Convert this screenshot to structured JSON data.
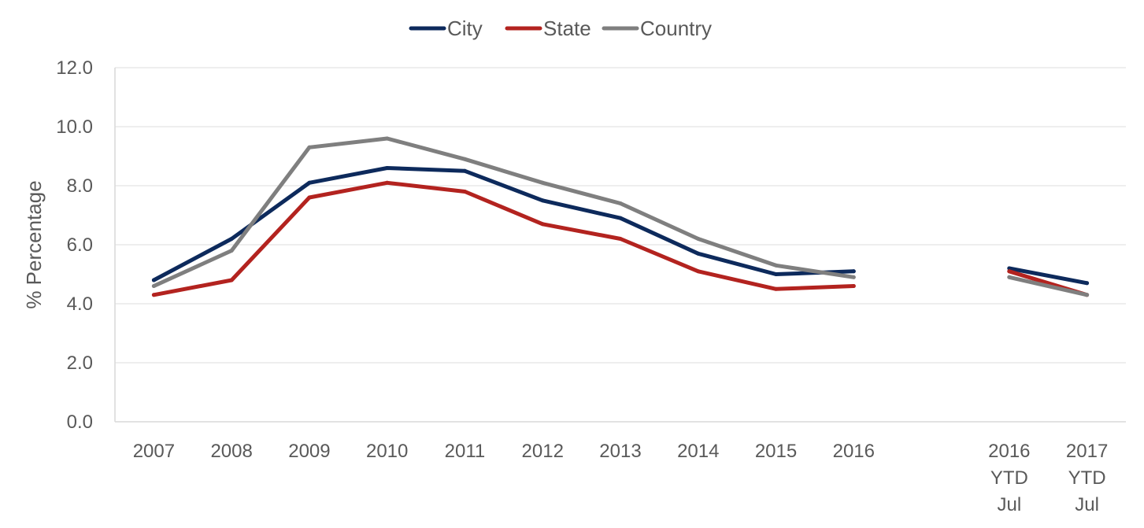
{
  "chart_data": {
    "type": "line",
    "legend_position": "top-center",
    "grid": "horizontal",
    "ylabel": "% Percentage",
    "ylim": [
      0,
      12
    ],
    "yticks": [
      "0.0",
      "2.0",
      "4.0",
      "6.0",
      "8.0",
      "10.0",
      "12.0"
    ],
    "categories": [
      [
        "2007"
      ],
      [
        "2008"
      ],
      [
        "2009"
      ],
      [
        "2010"
      ],
      [
        "2011"
      ],
      [
        "2012"
      ],
      [
        "2013"
      ],
      [
        "2014"
      ],
      [
        "2015"
      ],
      [
        "2016"
      ],
      [
        "2016",
        "YTD",
        "Jul"
      ],
      [
        "2017",
        "YTD",
        "Jul"
      ]
    ],
    "segments": [
      [
        0,
        9
      ],
      [
        10,
        11
      ]
    ],
    "series": [
      {
        "name": "City",
        "color": "#0d2a5c",
        "values": [
          4.8,
          6.2,
          8.1,
          8.6,
          8.5,
          7.5,
          6.9,
          5.7,
          5.0,
          5.1,
          5.2,
          4.7
        ]
      },
      {
        "name": "State",
        "color": "#b3231f",
        "values": [
          4.3,
          4.8,
          7.6,
          8.1,
          7.8,
          6.7,
          6.2,
          5.1,
          4.5,
          4.6,
          5.1,
          4.3
        ]
      },
      {
        "name": "Country",
        "color": "#7f7f7f",
        "values": [
          4.6,
          5.8,
          9.3,
          9.6,
          8.9,
          8.1,
          7.4,
          6.2,
          5.3,
          4.9,
          4.9,
          4.3
        ]
      }
    ]
  }
}
